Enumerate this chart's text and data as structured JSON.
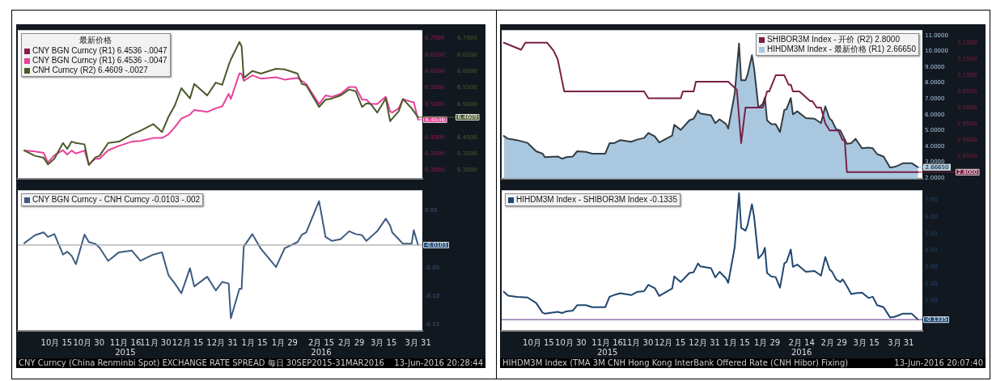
{
  "chart_data": [
    {
      "type": "line",
      "legend": "top left",
      "legend_title": "最新价格",
      "tick_labels": "y",
      "x": [
        "2015-09-30",
        "2015-10-05",
        "2015-10-09",
        "2015-10-11",
        "2015-10-14",
        "2015-10-18",
        "2015-10-20",
        "2015-10-22",
        "2015-10-24",
        "2015-10-28",
        "2015-10-30",
        "2015-11-02",
        "2015-11-04",
        "2015-11-08",
        "2015-11-13",
        "2015-11-19",
        "2015-11-23",
        "2015-11-29",
        "2015-12-03",
        "2015-12-06",
        "2015-12-09",
        "2015-12-12",
        "2015-12-16",
        "2015-12-18",
        "2015-12-24",
        "2015-12-28",
        "2015-12-31",
        "2016-01-03",
        "2016-01-04",
        "2016-01-08",
        "2016-01-09",
        "2016-01-10",
        "2016-01-14",
        "2016-01-18",
        "2016-01-25",
        "2016-01-29",
        "2016-02-04",
        "2016-02-06",
        "2016-02-08",
        "2016-02-14",
        "2016-02-17",
        "2016-02-20",
        "2016-02-24",
        "2016-02-28",
        "2016-03-02",
        "2016-03-05",
        "2016-03-07",
        "2016-03-09",
        "2016-03-12",
        "2016-03-16",
        "2016-03-18",
        "2016-03-19",
        "2016-03-22",
        "2016-03-24",
        "2016-03-28",
        "2016-03-29",
        "2016-03-31"
      ],
      "series": [
        {
          "name": "CNY BGN Curncy (R1) 6.4536 -.0047",
          "color": "#8b1c4f",
          "values": [
            null,
            null,
            null,
            null,
            null,
            null,
            null,
            null,
            null,
            null,
            null,
            null,
            null,
            null,
            null,
            null,
            null,
            null,
            null,
            null,
            null,
            null,
            null,
            null,
            null,
            null,
            null,
            null,
            null,
            null,
            null,
            null,
            null,
            null,
            null,
            null,
            null,
            null,
            null,
            null,
            null,
            null,
            null,
            null,
            null,
            null,
            null,
            null,
            null,
            null,
            null,
            null,
            null,
            null,
            null,
            null,
            null
          ]
        },
        {
          "name": "CNY BGN Curncy (R1) 6.4536 -.0047",
          "color": "#e8409a",
          "values": [
            6.36,
            6.357,
            6.353,
            6.324,
            6.346,
            6.361,
            6.348,
            6.36,
            6.351,
            6.36,
            6.318,
            6.335,
            6.335,
            6.361,
            6.374,
            6.387,
            6.389,
            6.398,
            6.398,
            6.409,
            6.431,
            6.457,
            6.469,
            6.483,
            6.477,
            6.488,
            6.494,
            6.532,
            6.516,
            6.594,
            6.593,
            6.571,
            6.588,
            6.578,
            6.582,
            6.575,
            6.58,
            6.571,
            6.562,
            6.501,
            6.527,
            6.523,
            6.532,
            6.553,
            6.552,
            6.514,
            6.514,
            6.501,
            6.501,
            6.523,
            6.479,
            6.475,
            6.488,
            6.516,
            6.507,
            6.507,
            6.4536
          ]
        },
        {
          "name": "CNH Curncy (R2) 6.4609 -.0027",
          "color": "#4a5a2a",
          "axis": "y2",
          "values": [
            6.36,
            6.344,
            6.338,
            6.318,
            6.335,
            6.383,
            6.365,
            6.387,
            6.383,
            6.379,
            6.316,
            6.339,
            6.344,
            6.383,
            6.387,
            6.409,
            6.42,
            6.44,
            6.416,
            6.462,
            6.497,
            6.549,
            6.518,
            6.562,
            6.527,
            6.566,
            6.559,
            6.619,
            6.636,
            6.689,
            6.676,
            6.58,
            6.601,
            6.593,
            6.608,
            6.606,
            6.593,
            6.562,
            6.558,
            6.492,
            6.514,
            6.518,
            6.527,
            6.545,
            6.54,
            6.492,
            6.503,
            6.501,
            6.475,
            6.518,
            6.449,
            6.457,
            6.479,
            6.516,
            6.488,
            6.479,
            6.4609
          ]
        }
      ],
      "xlim": [
        "2015-09-27",
        "2016-04-02"
      ],
      "ylim": [
        6.275,
        6.725
      ],
      "yticks": [
        {
          "value": 6.3,
          "label": "6.3000"
        },
        {
          "value": 6.35,
          "label": "6.3500"
        },
        {
          "value": 6.4,
          "label": "6.4000"
        },
        {
          "value": 6.5,
          "label": "6.5000"
        },
        {
          "value": 6.55,
          "label": "6.5500"
        },
        {
          "value": 6.6,
          "label": "6.6000"
        },
        {
          "value": 6.65,
          "label": "6.6500"
        },
        {
          "value": 6.7,
          "label": "6.7000"
        }
      ],
      "y2lim": [
        6.275,
        6.725
      ],
      "y2ticks": [
        {
          "value": 6.3,
          "label": "6.3000"
        },
        {
          "value": 6.35,
          "label": "6.3500"
        },
        {
          "value": 6.4,
          "label": "6.4000"
        },
        {
          "value": 6.5,
          "label": "6.5000"
        },
        {
          "value": 6.55,
          "label": "6.5500"
        },
        {
          "value": 6.6,
          "label": "6.6000"
        },
        {
          "value": 6.65,
          "label": "6.6500"
        },
        {
          "value": 6.7,
          "label": "6.7000"
        }
      ],
      "annotations": [
        {
          "text": "6.4536",
          "x": "2016-03-31",
          "y": 6.4536
        },
        {
          "text": "6.4609",
          "x": "2016-03-31",
          "y": 6.4609
        }
      ]
    },
    {
      "type": "line",
      "legend": "top left",
      "x": [
        "2015-09-30",
        "2015-10-05",
        "2015-10-09",
        "2015-10-11",
        "2015-10-14",
        "2015-10-18",
        "2015-10-20",
        "2015-10-22",
        "2015-10-24",
        "2015-10-28",
        "2015-10-30",
        "2015-11-02",
        "2015-11-04",
        "2015-11-08",
        "2015-11-13",
        "2015-11-19",
        "2015-11-23",
        "2015-11-29",
        "2015-12-03",
        "2015-12-06",
        "2015-12-09",
        "2015-12-12",
        "2015-12-16",
        "2015-12-18",
        "2015-12-24",
        "2015-12-28",
        "2015-12-31",
        "2016-01-03",
        "2016-01-04",
        "2016-01-08",
        "2016-01-09",
        "2016-01-10",
        "2016-01-14",
        "2016-01-18",
        "2016-01-25",
        "2016-01-29",
        "2016-02-04",
        "2016-02-06",
        "2016-02-08",
        "2016-02-14",
        "2016-02-17",
        "2016-02-20",
        "2016-02-24",
        "2016-02-28",
        "2016-03-02",
        "2016-03-05",
        "2016-03-07",
        "2016-03-09",
        "2016-03-12",
        "2016-03-16",
        "2016-03-18",
        "2016-03-19",
        "2016-03-22",
        "2016-03-24",
        "2016-03-28",
        "2016-03-29",
        "2016-03-31"
      ],
      "series": [
        {
          "name": "CNY BGN Curncy - CNH Curncy -0.0103 -.002",
          "color": "#3d5c80",
          "values": [
            -0.007,
            0.007,
            0.012,
            0.004,
            0.009,
            -0.027,
            -0.022,
            -0.029,
            -0.044,
            0.008,
            -0.005,
            -0.008,
            -0.015,
            -0.038,
            -0.023,
            -0.02,
            -0.038,
            -0.027,
            -0.023,
            -0.063,
            -0.078,
            -0.095,
            -0.051,
            -0.083,
            -0.066,
            -0.09,
            -0.075,
            -0.078,
            -0.139,
            -0.087,
            -0.087,
            -0.013,
            0.009,
            -0.017,
            -0.049,
            -0.016,
            -0.005,
            0.008,
            0.012,
            0.067,
            0.004,
            -0.003,
            0.0,
            0.014,
            0.009,
            0.007,
            -0.003,
            0.004,
            0.014,
            0.036,
            0.024,
            0.012,
            0.0,
            -0.008,
            -0.008,
            0.016,
            -0.0103
          ]
        }
      ],
      "xlim": [
        "2015-09-27",
        "2016-04-02"
      ],
      "xticks": [
        {
          "value": "2015-10-15",
          "label": "10月 15"
        },
        {
          "value": "2015-10-30",
          "label": "10月 30"
        },
        {
          "value": "2015-11-16",
          "label": "11月 16\n2015"
        },
        {
          "value": "2015-11-30",
          "label": "11月 30"
        },
        {
          "value": "2015-12-15",
          "label": "12月 15"
        },
        {
          "value": "2015-12-31",
          "label": "12月 31"
        },
        {
          "value": "2016-01-15",
          "label": "1月 15"
        },
        {
          "value": "2016-01-29",
          "label": "1月 29"
        },
        {
          "value": "2016-02-15",
          "label": "2月 15\n2016"
        },
        {
          "value": "2016-02-29",
          "label": "2月 29"
        },
        {
          "value": "2016-03-15",
          "label": "3月 15"
        },
        {
          "value": "2016-03-31",
          "label": "3月 31"
        }
      ],
      "ylim": [
        -0.161,
        0.086
      ],
      "yticks": [
        {
          "value": -0.15,
          "label": "-0.15"
        },
        {
          "value": -0.1,
          "label": "-0.10"
        },
        {
          "value": -0.05,
          "label": "-0.05"
        },
        {
          "value": 0.05,
          "label": "0.05"
        }
      ],
      "ref_lines": [
        {
          "axis": "y",
          "value": -0.0103,
          "label": "-0.0103",
          "color": "#a8a8a8"
        }
      ],
      "annotations": [
        "CNY Curncy (China Renminbi Spot) EXCHANGE RATE SPREAD 每日 30SEP2015-31MAR2016",
        "13-Jun-2016 20:28:44"
      ]
    },
    {
      "type": "area",
      "legend": "top right",
      "tick_labels": "y",
      "x": [
        "2015-09-29",
        "2015-10-01",
        "2015-10-05",
        "2015-10-10",
        "2015-10-14",
        "2015-10-17",
        "2015-10-18",
        "2015-10-24",
        "2015-10-26",
        "2015-10-28",
        "2015-10-31",
        "2015-11-02",
        "2015-11-06",
        "2015-11-09",
        "2015-11-15",
        "2015-11-17",
        "2015-11-19",
        "2015-11-22",
        "2015-11-27",
        "2015-11-30",
        "2015-12-03",
        "2015-12-05",
        "2015-12-08",
        "2015-12-10",
        "2015-12-16",
        "2015-12-17",
        "2015-12-20",
        "2015-12-24",
        "2015-12-26",
        "2015-12-28",
        "2015-12-29",
        "2016-01-03",
        "2016-01-05",
        "2016-01-07",
        "2016-01-10",
        "2016-01-11",
        "2016-01-14",
        "2016-01-16",
        "2016-01-17",
        "2016-01-19",
        "2016-01-20",
        "2016-01-22",
        "2016-01-23",
        "2016-01-25",
        "2016-01-27",
        "2016-01-28",
        "2016-01-29",
        "2016-01-31",
        "2016-02-02",
        "2016-02-04",
        "2016-02-06",
        "2016-02-07",
        "2016-02-09",
        "2016-02-10",
        "2016-02-12",
        "2016-02-16",
        "2016-02-20",
        "2016-02-23",
        "2016-02-25",
        "2016-02-27",
        "2016-02-28",
        "2016-03-01",
        "2016-03-03",
        "2016-03-04",
        "2016-03-06",
        "2016-03-08",
        "2016-03-10",
        "2016-03-13",
        "2016-03-16",
        "2016-03-18",
        "2016-03-20",
        "2016-03-23",
        "2016-03-26",
        "2016-03-28",
        "2016-03-30",
        "2016-04-01",
        "2016-04-05",
        "2016-04-08"
      ],
      "series": [
        {
          "name": "SHIBOR3M Index - 开价 (R2) 2.8000",
          "color": "#7a1f47",
          "type": "line",
          "axis": "y2",
          "x": [
            "2015-09-29",
            "2015-10-07",
            "2015-10-09",
            "2015-10-19",
            "2015-10-22",
            "2015-10-24",
            "2015-10-26",
            "2015-10-27",
            "2015-12-03",
            "2015-12-05",
            "2015-12-20",
            "2015-12-21",
            "2015-12-26",
            "2015-12-27",
            "2016-01-11",
            "2016-01-15",
            "2016-01-17",
            "2016-01-19",
            "2016-01-27",
            "2016-01-29",
            "2016-01-30",
            "2016-02-02",
            "2016-02-06",
            "2016-02-08",
            "2016-02-09",
            "2016-02-10",
            "2016-02-13",
            "2016-02-18",
            "2016-02-19",
            "2016-02-21",
            "2016-02-23",
            "2016-02-25",
            "2016-02-27",
            "2016-03-02",
            "2016-03-04",
            "2016-03-05",
            "2016-03-06",
            "2016-04-08"
          ],
          "values": [
            3.201,
            3.179,
            3.201,
            3.201,
            3.177,
            3.149,
            3.083,
            3.05,
            3.05,
            3.029,
            3.029,
            3.05,
            3.05,
            3.08,
            3.08,
            3.055,
            2.89,
            3.0,
            3.0,
            3.05,
            3.05,
            3.1,
            3.1,
            3.071,
            3.071,
            3.05,
            3.05,
            3.02,
            3.02,
            3.0,
            3.0,
            2.951,
            2.929,
            2.929,
            2.899,
            2.899,
            2.8,
            2.8
          ]
        },
        {
          "name": "HIHDM3M Index - 最新价格 (R1) 2.66650",
          "color": "#a9c8df",
          "values": [
            4.65,
            4.47,
            4.39,
            4.21,
            3.68,
            3.53,
            3.31,
            3.35,
            3.21,
            3.31,
            3.35,
            3.68,
            3.64,
            3.53,
            3.53,
            4.19,
            4.19,
            4.39,
            4.28,
            4.43,
            4.52,
            4.84,
            4.62,
            4.24,
            4.67,
            5.36,
            5.03,
            5.64,
            5.74,
            6.26,
            6.07,
            5.96,
            5.46,
            5.7,
            5.4,
            5.12,
            7.33,
            10.5,
            8.17,
            8.17,
            8.54,
            9.76,
            8.92,
            6.45,
            6.67,
            7.08,
            5.64,
            5.4,
            5.4,
            4.9,
            6.3,
            6.34,
            7.05,
            6.02,
            6.21,
            5.78,
            5.74,
            5.46,
            6.52,
            5.74,
            5.64,
            5.08,
            4.99,
            4.71,
            4.15,
            4.19,
            4.47,
            3.87,
            3.91,
            3.87,
            3.5,
            3.35,
            2.65,
            2.69,
            2.79,
            2.93,
            2.93,
            2.6665
          ]
        }
      ],
      "xlim": [
        "2015-09-28",
        "2016-04-10"
      ],
      "ylim": [
        1.95,
        11.35
      ],
      "yticks": [
        {
          "value": 2,
          "label": "2.0000"
        },
        {
          "value": 3,
          "label": "3.0000"
        },
        {
          "value": 4,
          "label": "4.0000"
        },
        {
          "value": 5,
          "label": "5.0000"
        },
        {
          "value": 6,
          "label": "6.0000"
        },
        {
          "value": 7,
          "label": "7.0000"
        },
        {
          "value": 8,
          "label": "8.0000"
        },
        {
          "value": 9,
          "label": "9.0000"
        },
        {
          "value": 10,
          "label": "10.0000"
        },
        {
          "value": 11,
          "label": "11.0000"
        }
      ],
      "y2lim": [
        2.78,
        3.24
      ],
      "y2ticks": [
        {
          "value": 2.85,
          "label": "2.8500"
        },
        {
          "value": 2.9,
          "label": "2.9000"
        },
        {
          "value": 2.95,
          "label": "2.9500"
        },
        {
          "value": 3.0,
          "label": "3.0000"
        },
        {
          "value": 3.05,
          "label": "3.0500"
        },
        {
          "value": 3.1,
          "label": "3.1000"
        },
        {
          "value": 3.15,
          "label": "3.1500"
        },
        {
          "value": 3.2,
          "label": "3.2000"
        }
      ],
      "annotations": [
        {
          "text": "2.66650",
          "x": "2016-04-08",
          "y": 2.6665
        },
        {
          "text": "2.8000",
          "x": "2016-04-08",
          "y": 2.8
        }
      ]
    },
    {
      "type": "line",
      "legend": "top left",
      "x": [
        "2015-09-29",
        "2015-10-01",
        "2015-10-05",
        "2015-10-10",
        "2015-10-14",
        "2015-10-17",
        "2015-10-18",
        "2015-10-24",
        "2015-10-26",
        "2015-10-28",
        "2015-10-31",
        "2015-11-02",
        "2015-11-06",
        "2015-11-09",
        "2015-11-15",
        "2015-11-17",
        "2015-11-19",
        "2015-11-22",
        "2015-11-27",
        "2015-11-30",
        "2015-12-03",
        "2015-12-05",
        "2015-12-08",
        "2015-12-10",
        "2015-12-16",
        "2015-12-17",
        "2015-12-20",
        "2015-12-24",
        "2015-12-26",
        "2015-12-28",
        "2015-12-29",
        "2016-01-03",
        "2016-01-05",
        "2016-01-07",
        "2016-01-10",
        "2016-01-11",
        "2016-01-14",
        "2016-01-16",
        "2016-01-17",
        "2016-01-19",
        "2016-01-20",
        "2016-01-22",
        "2016-01-23",
        "2016-01-25",
        "2016-01-27",
        "2016-01-28",
        "2016-01-29",
        "2016-01-31",
        "2016-02-02",
        "2016-02-04",
        "2016-02-06",
        "2016-02-07",
        "2016-02-09",
        "2016-02-10",
        "2016-02-12",
        "2016-02-16",
        "2016-02-20",
        "2016-02-23",
        "2016-02-25",
        "2016-02-27",
        "2016-02-28",
        "2016-03-01",
        "2016-03-03",
        "2016-03-04",
        "2016-03-06",
        "2016-03-08",
        "2016-03-10",
        "2016-03-13",
        "2016-03-16",
        "2016-03-18",
        "2016-03-20",
        "2016-03-23",
        "2016-03-26",
        "2016-03-28",
        "2016-03-30",
        "2016-04-01",
        "2016-04-05",
        "2016-04-08"
      ],
      "series": [
        {
          "name": "HIHDM3M Index - SHIBOR3M Index -0.1335",
          "color": "#1f4670",
          "values": [
            1.53,
            1.3,
            1.23,
            1.19,
            0.86,
            0.28,
            0.23,
            0.33,
            0.26,
            0.36,
            0.41,
            0.73,
            0.73,
            0.61,
            0.61,
            1.23,
            1.33,
            1.44,
            1.33,
            1.53,
            1.56,
            1.94,
            1.74,
            1.28,
            1.72,
            2.44,
            2.11,
            2.65,
            2.7,
            3.22,
            3.05,
            2.94,
            2.39,
            2.72,
            2.32,
            2.06,
            4.18,
            7.41,
            5.34,
            5.17,
            5.51,
            6.75,
            6.0,
            3.52,
            3.8,
            4.15,
            2.65,
            2.44,
            2.4,
            1.77,
            3.22,
            3.3,
            4.05,
            3.02,
            3.15,
            2.72,
            2.77,
            2.49,
            3.6,
            2.85,
            2.75,
            2.27,
            2.11,
            2.27,
            1.86,
            1.39,
            1.44,
            1.48,
            1.16,
            1.23,
            0.73,
            0.61,
            0.0,
            0.03,
            0.13,
            0.23,
            0.23,
            -0.1335
          ]
        }
      ],
      "xlim": [
        "2015-09-28",
        "2016-04-10"
      ],
      "xticks": [
        {
          "value": "2015-10-15",
          "label": "10月 15"
        },
        {
          "value": "2015-10-30",
          "label": "10月 30"
        },
        {
          "value": "2015-11-16",
          "label": "11月 16\n2015"
        },
        {
          "value": "2015-11-30",
          "label": "11月 30"
        },
        {
          "value": "2015-12-15",
          "label": "12月 15"
        },
        {
          "value": "2015-12-31",
          "label": "12月 31"
        },
        {
          "value": "2016-01-15",
          "label": "1月 15"
        },
        {
          "value": "2016-01-29",
          "label": "1月 29"
        },
        {
          "value": "2016-02-14",
          "label": "2月 14\n2016"
        },
        {
          "value": "2016-02-29",
          "label": "2月 29"
        },
        {
          "value": "2016-03-15",
          "label": "3月 15"
        },
        {
          "value": "2016-03-31",
          "label": "3月 31"
        }
      ],
      "ylim": [
        -0.8,
        7.58
      ],
      "yticks": [
        {
          "value": 1,
          "label": "1.00"
        },
        {
          "value": 2,
          "label": "2.00"
        },
        {
          "value": 3,
          "label": "3.00"
        },
        {
          "value": 4,
          "label": "4.00"
        },
        {
          "value": 5,
          "label": "5.00"
        },
        {
          "value": 6,
          "label": "6.00"
        },
        {
          "value": 7,
          "label": "7.00"
        }
      ],
      "ref_lines": [
        {
          "axis": "y",
          "value": -0.1335,
          "label": "-0.1335",
          "color": "#7b5a9e"
        }
      ],
      "annotations": [
        "HIHDM3M Index (TMA 3M CNH Hong Kong InterBank Offered Rate (CNH Hibor) Fixing)",
        "13-Jun-2016 20:07:40"
      ]
    }
  ]
}
